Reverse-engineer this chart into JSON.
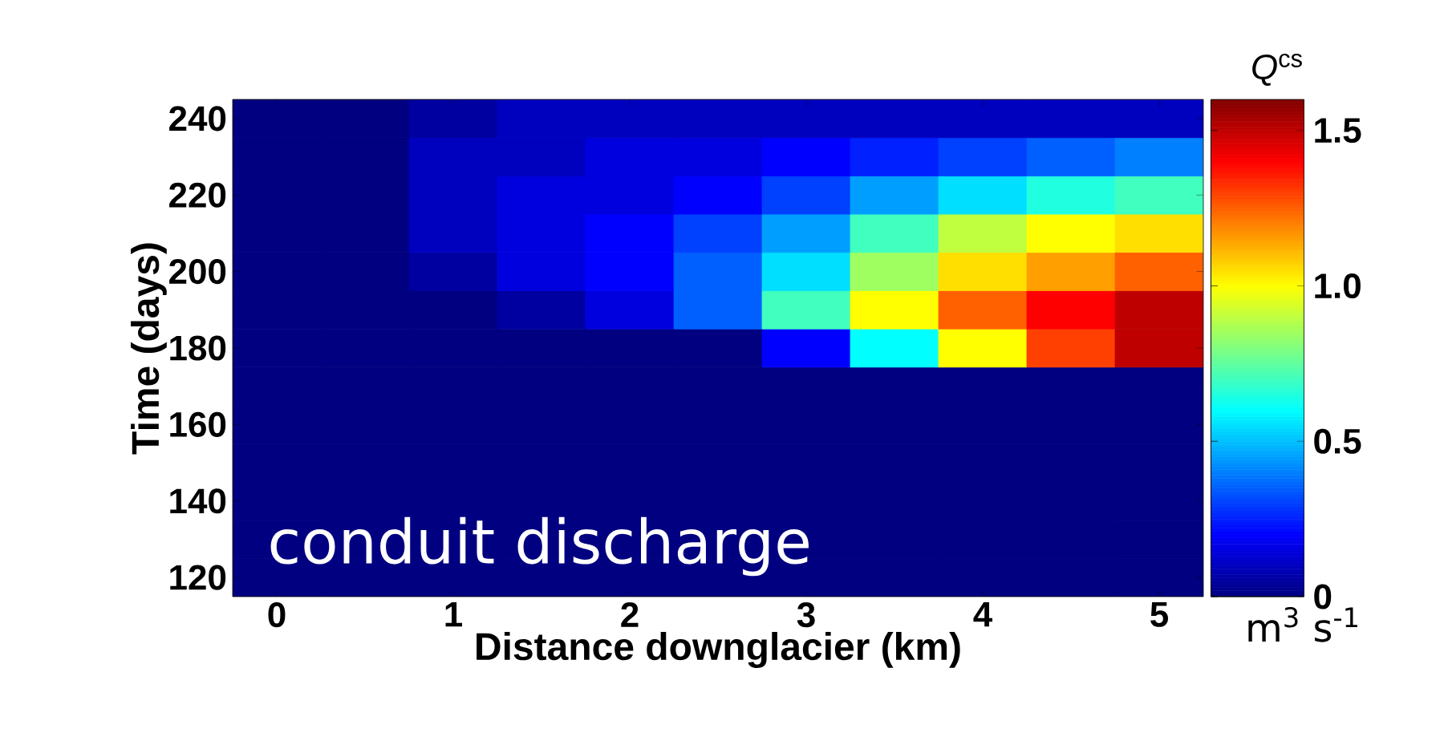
{
  "chart_data": {
    "type": "heatmap",
    "xlabel": "Distance downglacier (km)",
    "ylabel": "Time (days)",
    "clabel": "*Q*$^{cs}$",
    "categories": [
      "0",
      null,
      "1",
      null,
      "2",
      null,
      "3",
      null,
      "4",
      null,
      "5"
    ],
    "y_categories": [
      "240",
      null,
      "220",
      null,
      "200",
      null,
      "180",
      null,
      "160",
      null,
      "140",
      null,
      "120"
    ],
    "clim": [
      0,
      1.6
    ],
    "cticks": [
      0,
      0.5,
      {
        "value": 1,
        "label": "1.0"
      },
      1.5
    ],
    "cells": [
      [
        0,
        0,
        0.05,
        0.1,
        0.1,
        0.1,
        0.1,
        0.1,
        0.1,
        0.1,
        0.1
      ],
      [
        0,
        0,
        0.1,
        0.1,
        0.15,
        0.15,
        0.2,
        0.25,
        0.3,
        0.35,
        0.4
      ],
      [
        0,
        0,
        0.1,
        0.15,
        0.15,
        0.2,
        0.3,
        0.45,
        0.55,
        0.65,
        0.7
      ],
      [
        0,
        0,
        0.1,
        0.15,
        0.2,
        0.3,
        0.45,
        0.7,
        0.9,
        1.0,
        1.05
      ],
      [
        0,
        0,
        0.05,
        0.15,
        0.2,
        0.35,
        0.55,
        0.85,
        1.05,
        1.15,
        1.25
      ],
      [
        0,
        0,
        0,
        0.05,
        0.15,
        0.35,
        0.7,
        1.0,
        1.25,
        1.4,
        1.5
      ],
      [
        0,
        0,
        0,
        0,
        0,
        0,
        0.2,
        0.6,
        1.0,
        1.3,
        1.5
      ],
      [
        0,
        0,
        0,
        0,
        0,
        0,
        0,
        0,
        0,
        0,
        0
      ],
      [
        0,
        0,
        0,
        0,
        0,
        0,
        0,
        0,
        0,
        0,
        0
      ],
      [
        0,
        0,
        0,
        0,
        0,
        0,
        0,
        0,
        0,
        0,
        0
      ],
      [
        0,
        0,
        0,
        0,
        0,
        0,
        0,
        0,
        0,
        0,
        0
      ],
      [
        0,
        0,
        0,
        0,
        0,
        0,
        0,
        0,
        0,
        0,
        0
      ],
      [
        0,
        0,
        0,
        0,
        0,
        0,
        0,
        0,
        0,
        0,
        0
      ]
    ],
    "annotations": [
      "conduit discharge",
      "m$^{3}$ s$^{-1}$"
    ]
  }
}
